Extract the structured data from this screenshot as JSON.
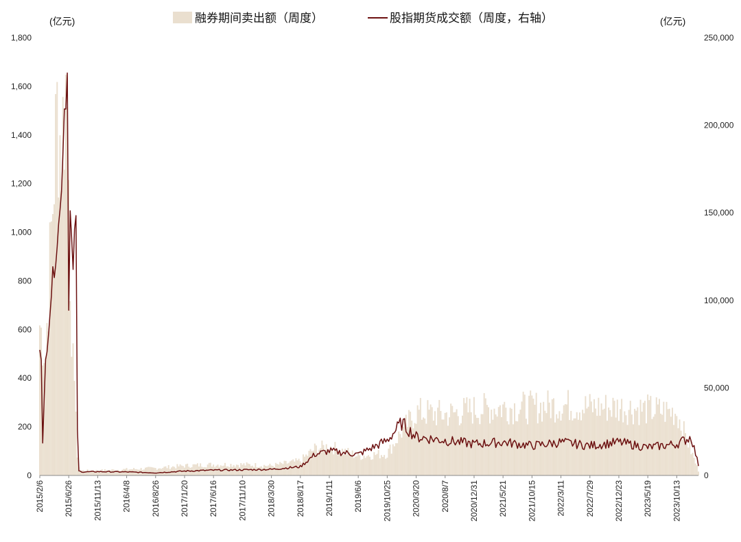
{
  "chart_data": {
    "type": "bar+line",
    "left_unit": "(亿元)",
    "right_unit": "(亿元)",
    "legend": [
      {
        "label": "融券期间卖出额（周度）",
        "kind": "bar",
        "color": "#eadfcf"
      },
      {
        "label": "股指期货成交额（周度，右轴）",
        "kind": "line",
        "color": "#6b0f0f"
      }
    ],
    "y_left": {
      "min": 0,
      "max": 1800,
      "ticks": [
        0,
        200,
        400,
        600,
        800,
        1000,
        1200,
        1400,
        1600,
        1800
      ],
      "tick_labels": [
        "0",
        "200",
        "400",
        "600",
        "800",
        "1,000",
        "1,200",
        "1,400",
        "1,600",
        "1,800"
      ]
    },
    "y_right": {
      "min": 0,
      "max": 250000,
      "ticks": [
        0,
        50000,
        100000,
        150000,
        200000,
        250000
      ],
      "tick_labels": [
        "0",
        "50,000",
        "100,000",
        "150,000",
        "200,000",
        "250,000"
      ]
    },
    "x_ticks": [
      "2015/2/6",
      "2015/6/26",
      "2015/11/13",
      "2016/4/8",
      "2016/8/26",
      "2017/1/20",
      "2017/6/16",
      "2017/11/10",
      "2018/3/30",
      "2018/8/17",
      "2019/1/11",
      "2019/6/6",
      "2019/10/25",
      "2020/3/20",
      "2020/8/7",
      "2020/12/31",
      "2021/5/21",
      "2021/10/15",
      "2022/3/11",
      "2022/7/29",
      "2022/12/23",
      "2023/5/19",
      "2023/10/13"
    ],
    "approx_week_keypoints": {
      "note": "week index from 2015/2/6 (tick labels every 20 weeks); values estimated from the gridless axes",
      "bars": [
        [
          0,
          620
        ],
        [
          4,
          500
        ],
        [
          8,
          1000
        ],
        [
          12,
          1500
        ],
        [
          15,
          1350
        ],
        [
          18,
          1600
        ],
        [
          20,
          1450
        ],
        [
          22,
          400
        ],
        [
          24,
          480
        ],
        [
          26,
          60
        ],
        [
          28,
          20
        ],
        [
          40,
          20
        ],
        [
          60,
          25
        ],
        [
          80,
          30
        ],
        [
          100,
          40
        ],
        [
          120,
          45
        ],
        [
          140,
          45
        ],
        [
          160,
          40
        ],
        [
          180,
          60
        ],
        [
          190,
          110
        ],
        [
          200,
          120
        ],
        [
          220,
          80
        ],
        [
          240,
          90
        ],
        [
          250,
          180
        ],
        [
          260,
          260
        ],
        [
          280,
          250
        ],
        [
          300,
          270
        ],
        [
          320,
          280
        ],
        [
          340,
          280
        ],
        [
          360,
          290
        ],
        [
          380,
          280
        ],
        [
          400,
          280
        ],
        [
          420,
          270
        ],
        [
          440,
          260
        ],
        [
          455,
          20
        ]
      ],
      "line": [
        [
          0,
          75000
        ],
        [
          1,
          70000
        ],
        [
          2,
          18000
        ],
        [
          4,
          65000
        ],
        [
          8,
          105000
        ],
        [
          10,
          120000
        ],
        [
          14,
          150000
        ],
        [
          17,
          210000
        ],
        [
          19,
          230000
        ],
        [
          20,
          100000
        ],
        [
          21,
          150000
        ],
        [
          23,
          115000
        ],
        [
          25,
          152000
        ],
        [
          26,
          25000
        ],
        [
          27,
          2500
        ],
        [
          30,
          2000
        ],
        [
          40,
          2200
        ],
        [
          60,
          2000
        ],
        [
          80,
          1500
        ],
        [
          100,
          2500
        ],
        [
          120,
          3000
        ],
        [
          140,
          3200
        ],
        [
          160,
          3500
        ],
        [
          180,
          5000
        ],
        [
          190,
          12000
        ],
        [
          200,
          14000
        ],
        [
          220,
          12000
        ],
        [
          240,
          20000
        ],
        [
          250,
          30000
        ],
        [
          260,
          22000
        ],
        [
          280,
          20000
        ],
        [
          300,
          18000
        ],
        [
          320,
          19000
        ],
        [
          340,
          17000
        ],
        [
          360,
          19000
        ],
        [
          380,
          17000
        ],
        [
          400,
          19000
        ],
        [
          420,
          16000
        ],
        [
          440,
          18000
        ],
        [
          450,
          22000
        ],
        [
          455,
          6000
        ]
      ]
    }
  }
}
